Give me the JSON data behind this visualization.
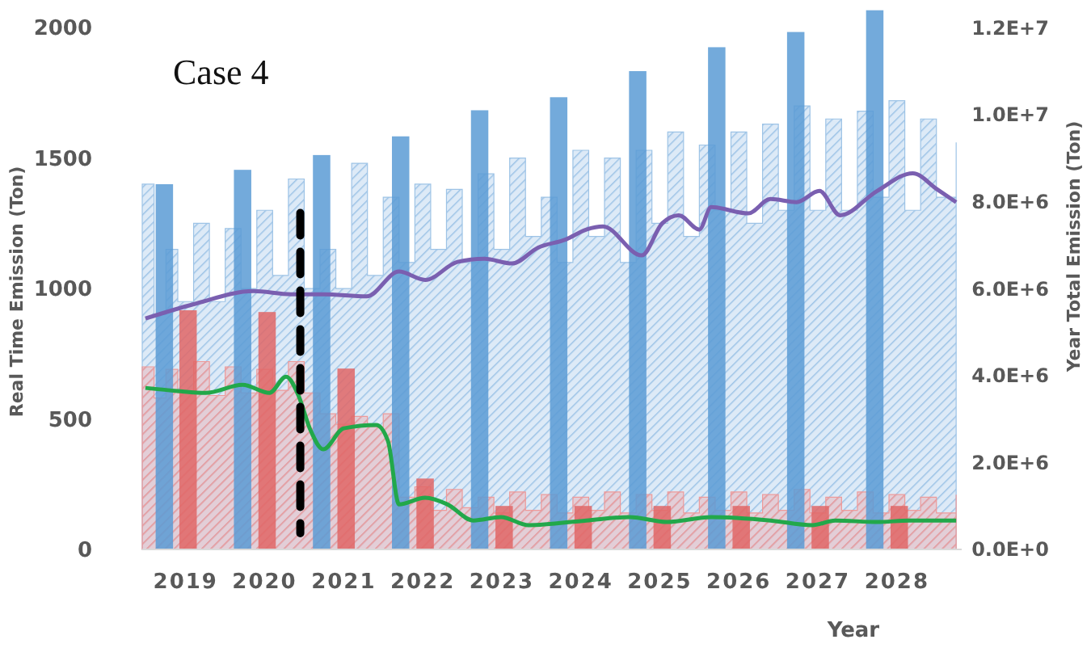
{
  "chart_data": {
    "type": "bar",
    "title": "Case 4",
    "xlabel": "Year",
    "ylabel": "Real Time Emission (Ton)",
    "y2label": "Year Total Emission (Ton)",
    "xlim": [
      2018.45,
      2028.82
    ],
    "xticks": [
      2019,
      2020,
      2021,
      2022,
      2023,
      2024,
      2025,
      2026,
      2027,
      2028
    ],
    "ylim": [
      0,
      2075
    ],
    "yticks": [
      0,
      500,
      1000,
      1500,
      2000
    ],
    "y2lim": [
      0,
      12450000
    ],
    "y2ticks": [
      {
        "value": 0,
        "label": "0.0E+0"
      },
      {
        "value": 2000000,
        "label": "2.0E+6"
      },
      {
        "value": 4000000,
        "label": "4.0E+6"
      },
      {
        "value": 6000000,
        "label": "6.0E+6"
      },
      {
        "value": 8000000,
        "label": "8.0E+6"
      },
      {
        "value": 10000000,
        "label": "1.0E+7"
      },
      {
        "value": 12000000,
        "label": "1.2E+7"
      }
    ],
    "grid": false,
    "series": [
      {
        "type": "area",
        "color": "#9dc3e6",
        "axis": "y",
        "x": [
          2018.45,
          2018.6,
          2018.75,
          2018.9,
          2019.1,
          2019.3,
          2019.5,
          2019.7,
          2019.9,
          2020.1,
          2020.3,
          2020.5,
          2020.7,
          2020.9,
          2021.1,
          2021.3,
          2021.5,
          2021.7,
          2021.9,
          2022.1,
          2022.3,
          2022.5,
          2022.7,
          2022.9,
          2023.1,
          2023.3,
          2023.5,
          2023.7,
          2023.9,
          2024.1,
          2024.3,
          2024.5,
          2024.7,
          2024.9,
          2025.1,
          2025.3,
          2025.5,
          2025.7,
          2025.9,
          2026.1,
          2026.3,
          2026.5,
          2026.7,
          2026.9,
          2027.1,
          2027.3,
          2027.5,
          2027.7,
          2027.9,
          2028.1,
          2028.3,
          2028.5,
          2028.75
        ],
        "values": [
          1400,
          900,
          1150,
          950,
          1250,
          950,
          1230,
          1000,
          1300,
          1050,
          1420,
          1000,
          1150,
          1000,
          1480,
          1050,
          1350,
          1100,
          1400,
          1150,
          1380,
          1100,
          1440,
          1150,
          1500,
          1200,
          1350,
          1100,
          1530,
          1200,
          1500,
          1100,
          1530,
          1250,
          1600,
          1200,
          1550,
          1300,
          1600,
          1250,
          1630,
          1300,
          1700,
          1300,
          1650,
          1300,
          1680,
          1350,
          1720,
          1300,
          1650,
          1350,
          1560
        ]
      },
      {
        "type": "area",
        "color": "#ee9a9a",
        "axis": "y",
        "x": [
          2018.45,
          2018.6,
          2018.75,
          2018.9,
          2019.1,
          2019.3,
          2019.5,
          2019.7,
          2019.9,
          2020.1,
          2020.3,
          2020.5,
          2020.7,
          2020.9,
          2021.1,
          2021.3,
          2021.5,
          2021.7,
          2021.9,
          2022.1,
          2022.3,
          2022.5,
          2022.7,
          2022.9,
          2023.1,
          2023.3,
          2023.5,
          2023.7,
          2023.9,
          2024.1,
          2024.3,
          2024.5,
          2024.7,
          2024.9,
          2025.1,
          2025.3,
          2025.5,
          2025.7,
          2025.9,
          2026.1,
          2026.3,
          2026.5,
          2026.7,
          2026.9,
          2027.1,
          2027.3,
          2027.5,
          2027.7,
          2027.9,
          2028.1,
          2028.3,
          2028.5,
          2028.75
        ],
        "values": [
          700,
          580,
          690,
          600,
          720,
          590,
          700,
          600,
          690,
          610,
          720,
          600,
          520,
          480,
          510,
          470,
          520,
          200,
          240,
          150,
          230,
          160,
          200,
          140,
          220,
          150,
          210,
          140,
          200,
          150,
          220,
          140,
          210,
          150,
          220,
          140,
          200,
          150,
          220,
          140,
          210,
          150,
          230,
          140,
          200,
          150,
          220,
          140,
          210,
          150,
          200,
          140,
          210
        ]
      },
      {
        "color": "#5b9bd5",
        "axis": "y2",
        "x": [
          2018.73,
          2019.72,
          2020.72,
          2021.72,
          2022.72,
          2023.72,
          2024.72,
          2025.72,
          2026.72,
          2027.72
        ],
        "values": [
          8400000,
          8730000,
          9070000,
          9500000,
          10100000,
          10400000,
          11000000,
          11550000,
          11900000,
          12400000
        ]
      },
      {
        "color": "#e06666",
        "axis": "y2",
        "x": [
          2019.03,
          2020.03,
          2021.03,
          2022.03,
          2023.03,
          2024.03,
          2025.03,
          2026.03,
          2027.03,
          2028.03
        ],
        "values": [
          5500000,
          5460000,
          4160000,
          1630000,
          1000000,
          1000000,
          1000000,
          1000000,
          1000000,
          1000000
        ]
      },
      {
        "type": "line",
        "color": "#7a5fb0",
        "axis": "y",
        "x": [
          2018.49,
          2019.1,
          2019.86,
          2020.33,
          2020.74,
          2021.29,
          2021.7,
          2022.03,
          2022.44,
          2022.78,
          2023.13,
          2023.46,
          2023.81,
          2024.07,
          2024.28,
          2024.77,
          2025.03,
          2025.24,
          2025.5,
          2025.65,
          2026.12,
          2026.4,
          2026.73,
          2027.02,
          2027.28,
          2027.75,
          2028.2,
          2028.51,
          2028.75
        ],
        "values": [
          885,
          940,
          990,
          978,
          978,
          970,
          1065,
          1033,
          1102,
          1114,
          1096,
          1157,
          1188,
          1226,
          1238,
          1127,
          1250,
          1281,
          1226,
          1312,
          1288,
          1343,
          1331,
          1374,
          1281,
          1374,
          1442,
          1380,
          1331
        ]
      },
      {
        "type": "line",
        "color": "#22a84a",
        "axis": "y",
        "x": [
          2018.49,
          2018.9,
          2019.25,
          2019.72,
          2020.06,
          2020.27,
          2020.43,
          2020.57,
          2020.74,
          2021.0,
          2021.41,
          2021.56,
          2021.7,
          2022.03,
          2022.31,
          2022.64,
          2022.99,
          2023.34,
          2024.07,
          2024.62,
          2025.09,
          2025.65,
          2026.4,
          2026.93,
          2027.22,
          2027.75,
          2028.16,
          2028.75
        ],
        "values": [
          619,
          607,
          600,
          631,
          600,
          662,
          588,
          464,
          384,
          464,
          477,
          415,
          173,
          198,
          173,
          111,
          124,
          93,
          111,
          124,
          105,
          124,
          111,
          93,
          111,
          105,
          111,
          111
        ]
      }
    ],
    "ref_lines": [
      {
        "axis": "x",
        "value": 2020.45,
        "color": "#000000",
        "line_style": "dashed"
      }
    ]
  }
}
